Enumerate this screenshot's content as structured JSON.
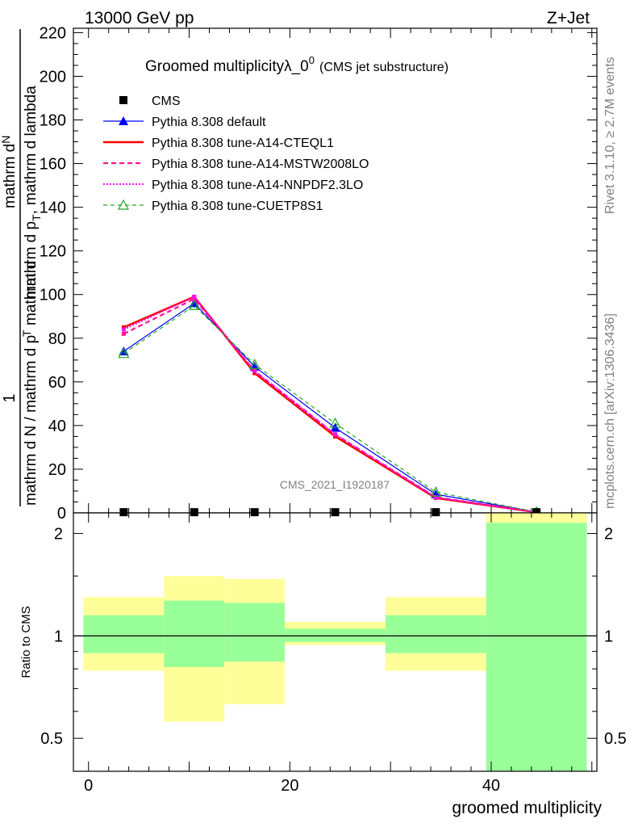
{
  "header": {
    "left": "13000 GeV pp",
    "right": "Z+Jet"
  },
  "side": {
    "rivet": "Rivet 3.1.10, ≥ 2.7M events",
    "mcplots": "mcplots.cern.ch [arXiv:1306.3436]"
  },
  "watermark": "CMS_2021_I1920187",
  "colors": {
    "cms": "#000000",
    "default": "#0000ff",
    "cteql1": "#ff0000",
    "mstw": "#ff1493",
    "nnpdf": "#ee11ee",
    "cuetp": "#22aa22",
    "band_outer": "#ffff99",
    "band_inner": "#99ff99"
  },
  "chart_data": [
    {
      "type": "line",
      "title": "Groomed multiplicityλ_0",
      "title_superscript": "0",
      "subtitle": "(CMS jet substructure)",
      "ylabel_numerator": "1",
      "ylabel_denominator": "mathrm d N / mathrm d p",
      "ylabel_top": "mathrm d",
      "ylabel_top2": "N",
      "ylabel_mid": "mathrm d p",
      "ylabel_mid_sub": "T",
      "ylabel_tail": "mathrm d lambda",
      "xlim": [
        -1.5,
        50.5
      ],
      "ylim": [
        0,
        222
      ],
      "yticks": [
        0,
        20,
        40,
        60,
        80,
        100,
        120,
        140,
        160,
        180,
        200,
        220
      ],
      "x": [
        3.5,
        10.5,
        16.5,
        24.5,
        34.5,
        44.5
      ],
      "legend_position": "top-left",
      "series": [
        {
          "name": "CMS",
          "key": "cms",
          "values": [
            0.3,
            0.3,
            0.3,
            0.3,
            0.3,
            0.3
          ]
        },
        {
          "name": "Pythia 8.308 default",
          "key": "default",
          "values": [
            74,
            96,
            67,
            39,
            8.5,
            0.4
          ]
        },
        {
          "name": "Pythia 8.308 tune-A14-CTEQL1",
          "key": "cteql1",
          "values": [
            85,
            99,
            64,
            35,
            6.8,
            0.3
          ]
        },
        {
          "name": "Pythia 8.308 tune-A14-MSTW2008LO",
          "key": "mstw",
          "values": [
            82,
            98,
            65,
            36,
            7.2,
            0.3
          ]
        },
        {
          "name": "Pythia 8.308 tune-A14-NNPDF2.3LO",
          "key": "nnpdf",
          "values": [
            84,
            99,
            65,
            36,
            7.0,
            0.3
          ]
        },
        {
          "name": "Pythia 8.308 tune-CUETP8S1",
          "key": "cuetp",
          "values": [
            73,
            95,
            68,
            41,
            9.5,
            0.4
          ]
        }
      ]
    },
    {
      "type": "area",
      "ylabel": "Ratio to CMS",
      "xlabel": "groomed multiplicity",
      "ylim": [
        0.4,
        2.3
      ],
      "log_y": true,
      "yticks": [
        0.5,
        1,
        2
      ],
      "ytick_labels": [
        "0.5",
        "1",
        "2"
      ],
      "xticks": [
        0,
        20,
        40
      ],
      "xtick_labels": [
        "0",
        "20",
        "40"
      ],
      "bins": [
        {
          "lo": -0.5,
          "hi": 7.5,
          "outer": [
            0.79,
            1.3
          ],
          "inner": [
            0.89,
            1.15
          ]
        },
        {
          "lo": 7.5,
          "hi": 13.5,
          "outer": [
            0.56,
            1.5
          ],
          "inner": [
            0.81,
            1.27
          ]
        },
        {
          "lo": 13.5,
          "hi": 19.5,
          "outer": [
            0.63,
            1.47
          ],
          "inner": [
            0.84,
            1.25
          ]
        },
        {
          "lo": 19.5,
          "hi": 29.5,
          "outer": [
            0.94,
            1.1
          ],
          "inner": [
            0.96,
            1.05
          ]
        },
        {
          "lo": 29.5,
          "hi": 39.5,
          "outer": [
            0.79,
            1.3
          ],
          "inner": [
            0.89,
            1.15
          ]
        },
        {
          "lo": 39.5,
          "hi": 49.5,
          "outer": [
            0.4,
            2.3
          ],
          "inner": [
            0.4,
            2.15
          ]
        }
      ]
    }
  ]
}
